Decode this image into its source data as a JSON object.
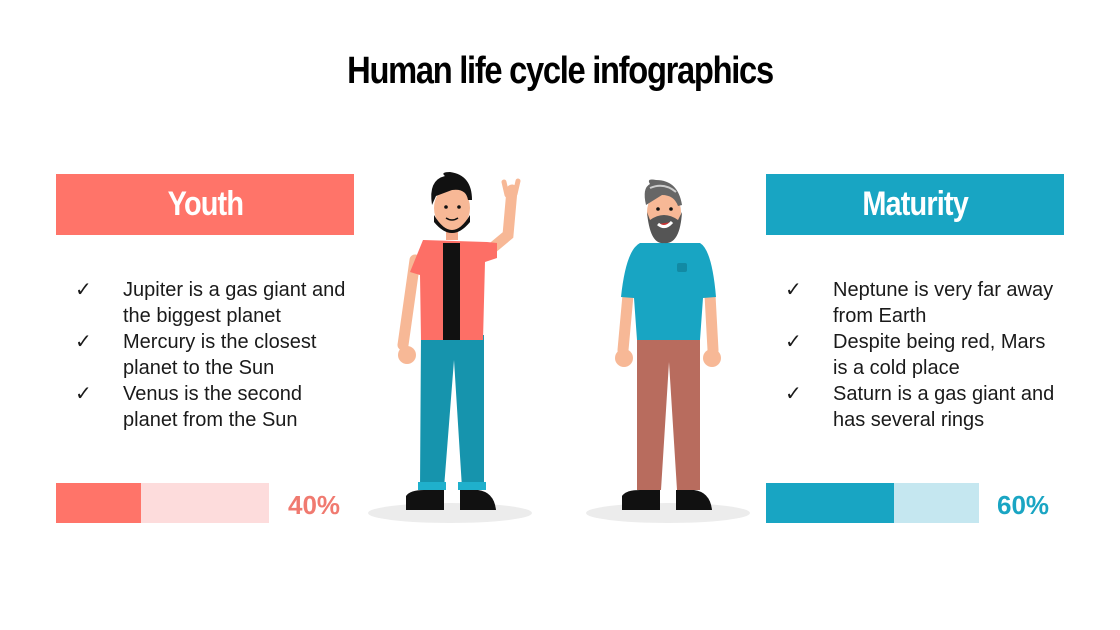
{
  "title": "Human life cycle infographics",
  "colors": {
    "youth": "#ff7469",
    "youth_light": "#fddcdc",
    "youth_text": "#f07a70",
    "maturity": "#18a5c3",
    "maturity_light": "#c5e7f0",
    "maturity_text": "#1aa5c3"
  },
  "youth": {
    "label": "Youth",
    "check_icon": "✓",
    "items": [
      "Jupiter is a gas giant and the biggest planet",
      "Mercury is the closest planet to the Sun",
      "Venus is the second planet from the Sun"
    ],
    "progress": 40,
    "progress_label": "40%"
  },
  "maturity": {
    "label": "Maturity",
    "check_icon": "✓",
    "items": [
      "Neptune is very far away from Earth",
      "Despite being red, Mars is a cold place",
      "Saturn is a gas giant and has several rings"
    ],
    "progress": 60,
    "progress_label": "60%"
  }
}
